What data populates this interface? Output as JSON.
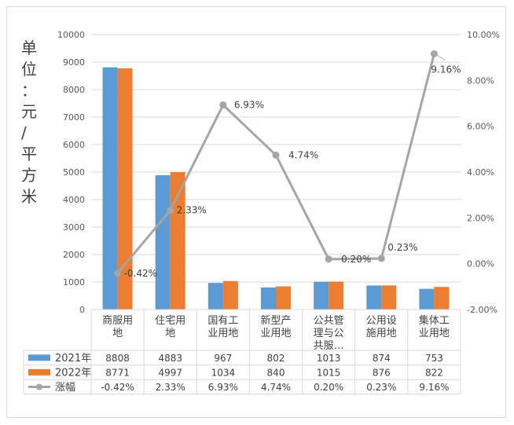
{
  "chart_data": {
    "type": "bar",
    "title": "",
    "ylabel": "单位：元/平方米",
    "categories": [
      [
        "商服用",
        "地"
      ],
      [
        "住宅用",
        "地"
      ],
      [
        "国有工",
        "业用地"
      ],
      [
        "新型产",
        "业用地"
      ],
      [
        "公共管",
        "理与公",
        "共服…"
      ],
      [
        "公用设",
        "施用地"
      ],
      [
        "集体工",
        "业用地"
      ]
    ],
    "series": [
      {
        "name": "2021年",
        "type": "bar",
        "color": "#5b9bd5",
        "values": [
          8808,
          4883,
          967,
          802,
          1013,
          874,
          753
        ],
        "labels": [
          "8808",
          "4883",
          "967",
          "802",
          "1013",
          "874",
          "753"
        ]
      },
      {
        "name": "2022年",
        "type": "bar",
        "color": "#ed7d31",
        "values": [
          8771,
          4997,
          1034,
          840,
          1015,
          876,
          822
        ],
        "labels": [
          "8771",
          "4997",
          "1034",
          "840",
          "1015",
          "876",
          "822"
        ]
      },
      {
        "name": "涨幅",
        "type": "line",
        "axis": "right",
        "color": "#a5a5a5",
        "values": [
          -0.42,
          2.33,
          6.93,
          4.74,
          0.2,
          0.23,
          9.16
        ],
        "labels": [
          "-0.42%",
          "2.33%",
          "6.93%",
          "4.74%",
          "0.20%",
          "0.23%",
          "9.16%"
        ]
      }
    ],
    "y_left": {
      "min": 0,
      "max": 10000,
      "ticks": [
        "0",
        "1000",
        "2000",
        "3000",
        "4000",
        "5000",
        "6000",
        "7000",
        "8000",
        "9000",
        "10000"
      ]
    },
    "y_right": {
      "min": -2,
      "max": 10,
      "ticks": [
        "-2.00%",
        "0.00%",
        "2.00%",
        "4.00%",
        "6.00%",
        "8.00%",
        "10.00%"
      ]
    },
    "grid": true,
    "legend": "data-table"
  }
}
